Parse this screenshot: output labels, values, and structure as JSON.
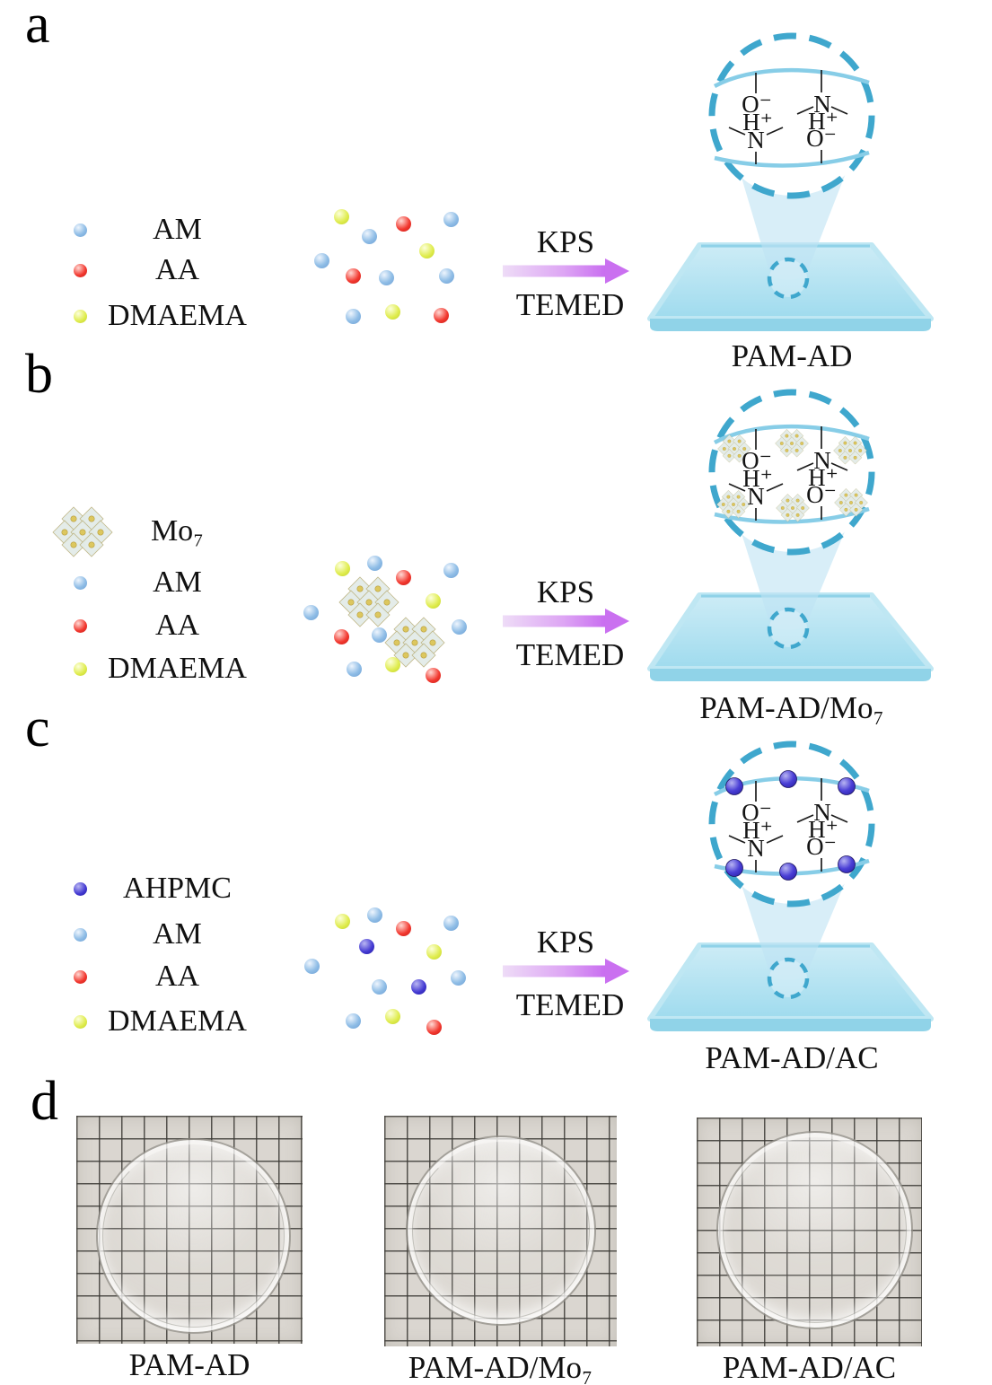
{
  "figure": {
    "panels": [
      {
        "id": "a",
        "letter": "a",
        "legend": [
          {
            "marker": "am",
            "label": "AM"
          },
          {
            "marker": "aa",
            "label": "AA"
          },
          {
            "marker": "dmaema",
            "label": "DMAEMA"
          }
        ],
        "mixture": [
          [
            "dmaema",
            380,
            241
          ],
          [
            "aa",
            449,
            249
          ],
          [
            "am",
            502,
            244
          ],
          [
            "am",
            411,
            263
          ],
          [
            "dmaema",
            475,
            279
          ],
          [
            "am",
            358,
            290
          ],
          [
            "aa",
            393,
            307
          ],
          [
            "am",
            430,
            309
          ],
          [
            "am",
            497,
            307
          ],
          [
            "am",
            393,
            352
          ],
          [
            "dmaema",
            437,
            347
          ],
          [
            "aa",
            491,
            351
          ]
        ],
        "arrow": {
          "top": "KPS",
          "bottom": "TEMED"
        },
        "product": "PAM-AD",
        "extras": "none",
        "extra_positions": []
      },
      {
        "id": "b",
        "letter": "b",
        "legend": [
          {
            "marker": "mo7",
            "label": "Mo₇"
          },
          {
            "marker": "am",
            "label": "AM"
          },
          {
            "marker": "aa",
            "label": "AA"
          },
          {
            "marker": "dmaema",
            "label": "DMAEMA"
          }
        ],
        "mixture": [
          [
            "dmaema",
            381,
            633
          ],
          [
            "am",
            417,
            627
          ],
          [
            "aa",
            449,
            643
          ],
          [
            "am",
            502,
            635
          ],
          [
            "mo7",
            411,
            670
          ],
          [
            "dmaema",
            482,
            669
          ],
          [
            "am",
            346,
            682
          ],
          [
            "am",
            511,
            698
          ],
          [
            "aa",
            380,
            709
          ],
          [
            "am",
            422,
            707
          ],
          [
            "mo7",
            462,
            715
          ],
          [
            "am",
            394,
            745
          ],
          [
            "dmaema",
            437,
            740
          ],
          [
            "aa",
            482,
            752
          ]
        ],
        "arrow": {
          "top": "KPS",
          "bottom": "TEMED"
        },
        "product": "PAM-AD/Mo₇",
        "extras": "mo7",
        "extra_positions": [
          [
            -64,
            -26
          ],
          [
            0,
            -32
          ],
          [
            65,
            -24
          ],
          [
            -65,
            36
          ],
          [
            1,
            40
          ],
          [
            66,
            34
          ]
        ]
      },
      {
        "id": "c",
        "letter": "c",
        "legend": [
          {
            "marker": "ahpmc",
            "label": "AHPMC"
          },
          {
            "marker": "am",
            "label": "AM"
          },
          {
            "marker": "aa",
            "label": "AA"
          },
          {
            "marker": "dmaema",
            "label": "DMAEMA"
          }
        ],
        "mixture": [
          [
            "dmaema",
            381,
            1026
          ],
          [
            "am",
            417,
            1019
          ],
          [
            "aa",
            449,
            1034
          ],
          [
            "am",
            502,
            1028
          ],
          [
            "ahpmc",
            408,
            1054
          ],
          [
            "dmaema",
            483,
            1060
          ],
          [
            "am",
            347,
            1076
          ],
          [
            "am",
            510,
            1089
          ],
          [
            "am",
            422,
            1099
          ],
          [
            "ahpmc",
            466,
            1099
          ],
          [
            "am",
            393,
            1137
          ],
          [
            "dmaema",
            437,
            1132
          ],
          [
            "aa",
            483,
            1144
          ]
        ],
        "arrow": {
          "top": "KPS",
          "bottom": "TEMED"
        },
        "product": "PAM-AD/AC",
        "extras": "ahpmc",
        "extra_positions": [
          [
            -64,
            -42
          ],
          [
            -4,
            -50
          ],
          [
            61,
            -42
          ],
          [
            -64,
            49
          ],
          [
            -4,
            53
          ],
          [
            61,
            45
          ]
        ]
      }
    ],
    "chemistry": {
      "left_group": [
        "O⁻",
        "H⁺",
        "N"
      ],
      "right_group": [
        "N",
        "H⁺",
        "O⁻"
      ]
    },
    "panel_d": {
      "letter": "d",
      "photos": [
        {
          "label": "PAM-AD"
        },
        {
          "label": "PAM-AD/Mo₇"
        },
        {
          "label": "PAM-AD/AC"
        }
      ]
    },
    "colors": {
      "am": "#8fbde6",
      "aa": "#f2372e",
      "dmaema": "#dfec4d",
      "ahpmc": "#4339d2",
      "mo7_face": "#e3ece8",
      "mo7_dot": "#dcc75f",
      "dash_blue": "#3fa7cd",
      "chain_blue": "#87cde7",
      "slab_light": "#cdecf6",
      "slab_dark": "#9fdbee",
      "arrow_light": "#eedcf7",
      "arrow_dark": "#c96ef0"
    }
  }
}
